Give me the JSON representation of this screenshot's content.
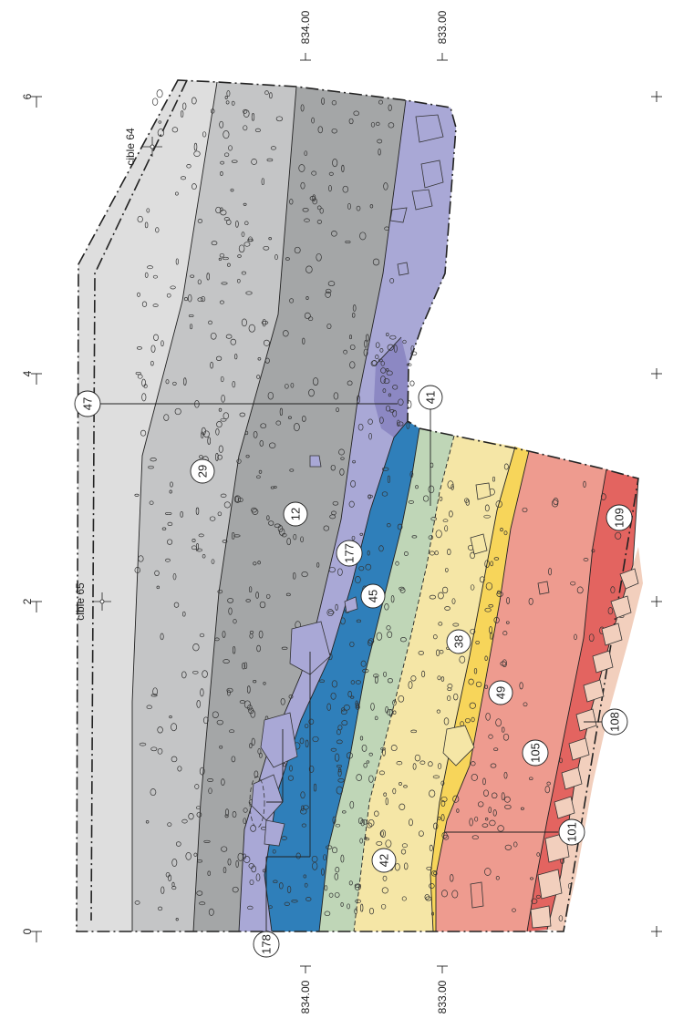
{
  "colors": {
    "layer_top_lightest": "#dedede",
    "layer_29": "#c4c5c6",
    "layer_12": "#a4a6a7",
    "layer_177": "#a9a8d6",
    "layer_41": "#8c88c3",
    "layer_45": "#2f7fba",
    "layer_42": "#bfd6b7",
    "layer_38": "#f5e6a6",
    "layer_49": "#f7d55a",
    "layer_105": "#ee9b8f",
    "layer_109": "#e36460",
    "layer_108": "#f2cfbd"
  },
  "labels": {
    "l29": "29",
    "l12": "12",
    "l177": "177",
    "l47": "47",
    "l41": "41",
    "l45": "45",
    "l38": "38",
    "l49": "49",
    "l109": "109",
    "l105": "105",
    "l108": "108",
    "l101": "101",
    "l42": "42",
    "l178": "178"
  },
  "scale_top": [
    "0",
    "2",
    "4",
    "6"
  ],
  "elevation_top": [
    "834.00",
    "833.00"
  ],
  "elevation_bottom": [
    "834.00",
    "833.00"
  ],
  "targets": {
    "cible65": "cible 65",
    "cible64": "cible 64"
  }
}
